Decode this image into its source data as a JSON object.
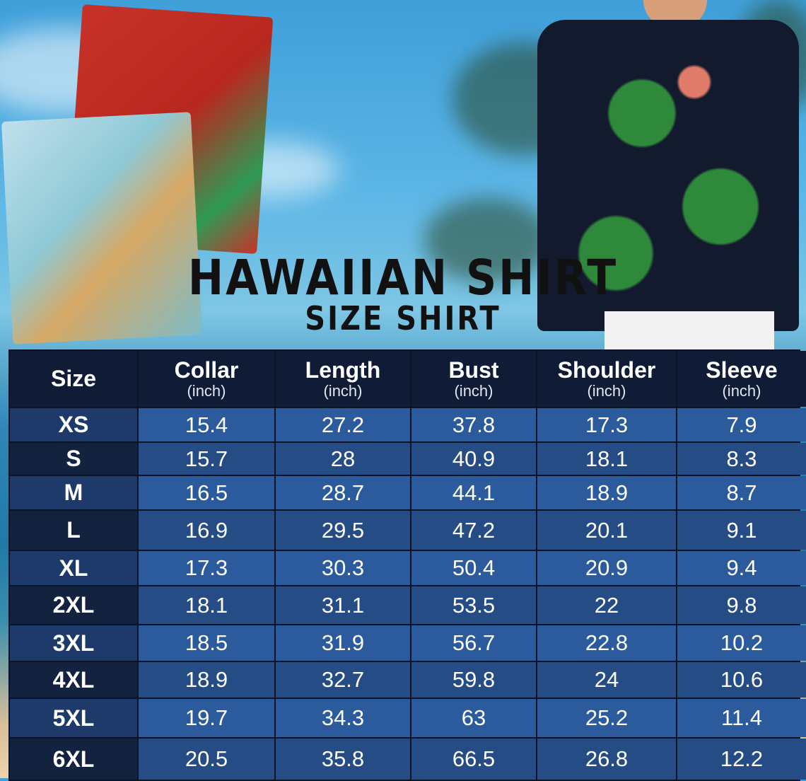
{
  "title": "HAWAIIAN SHIRT",
  "subtitle": "SIZE SHIRT",
  "colors": {
    "header_bg": "#101c36",
    "row_light": "#2c5b9d",
    "row_dark": "#264c86",
    "size_col_dark": "#12223f"
  },
  "table": {
    "headers": [
      {
        "label": "Size",
        "unit": ""
      },
      {
        "label": "Collar",
        "unit": "(inch)"
      },
      {
        "label": "Length",
        "unit": "(inch)"
      },
      {
        "label": "Bust",
        "unit": "(inch)"
      },
      {
        "label": "Shoulder",
        "unit": "(inch)"
      },
      {
        "label": "Sleeve",
        "unit": "(inch)"
      }
    ],
    "rows": [
      [
        "XS",
        "15.4",
        "27.2",
        "37.8",
        "17.3",
        "7.9"
      ],
      [
        "S",
        "15.7",
        "28",
        "40.9",
        "18.1",
        "8.3"
      ],
      [
        "M",
        "16.5",
        "28.7",
        "44.1",
        "18.9",
        "8.7"
      ],
      [
        "L",
        "16.9",
        "29.5",
        "47.2",
        "20.1",
        "9.1"
      ],
      [
        "XL",
        "17.3",
        "30.3",
        "50.4",
        "20.9",
        "9.4"
      ],
      [
        "2XL",
        "18.1",
        "31.1",
        "53.5",
        "22",
        "9.8"
      ],
      [
        "3XL",
        "18.5",
        "31.9",
        "56.7",
        "22.8",
        "10.2"
      ],
      [
        "4XL",
        "18.9",
        "32.7",
        "59.8",
        "24",
        "10.6"
      ],
      [
        "5XL",
        "19.7",
        "34.3",
        "63",
        "25.2",
        "11.4"
      ],
      [
        "6XL",
        "20.5",
        "35.8",
        "66.5",
        "26.8",
        "12.2"
      ]
    ]
  }
}
